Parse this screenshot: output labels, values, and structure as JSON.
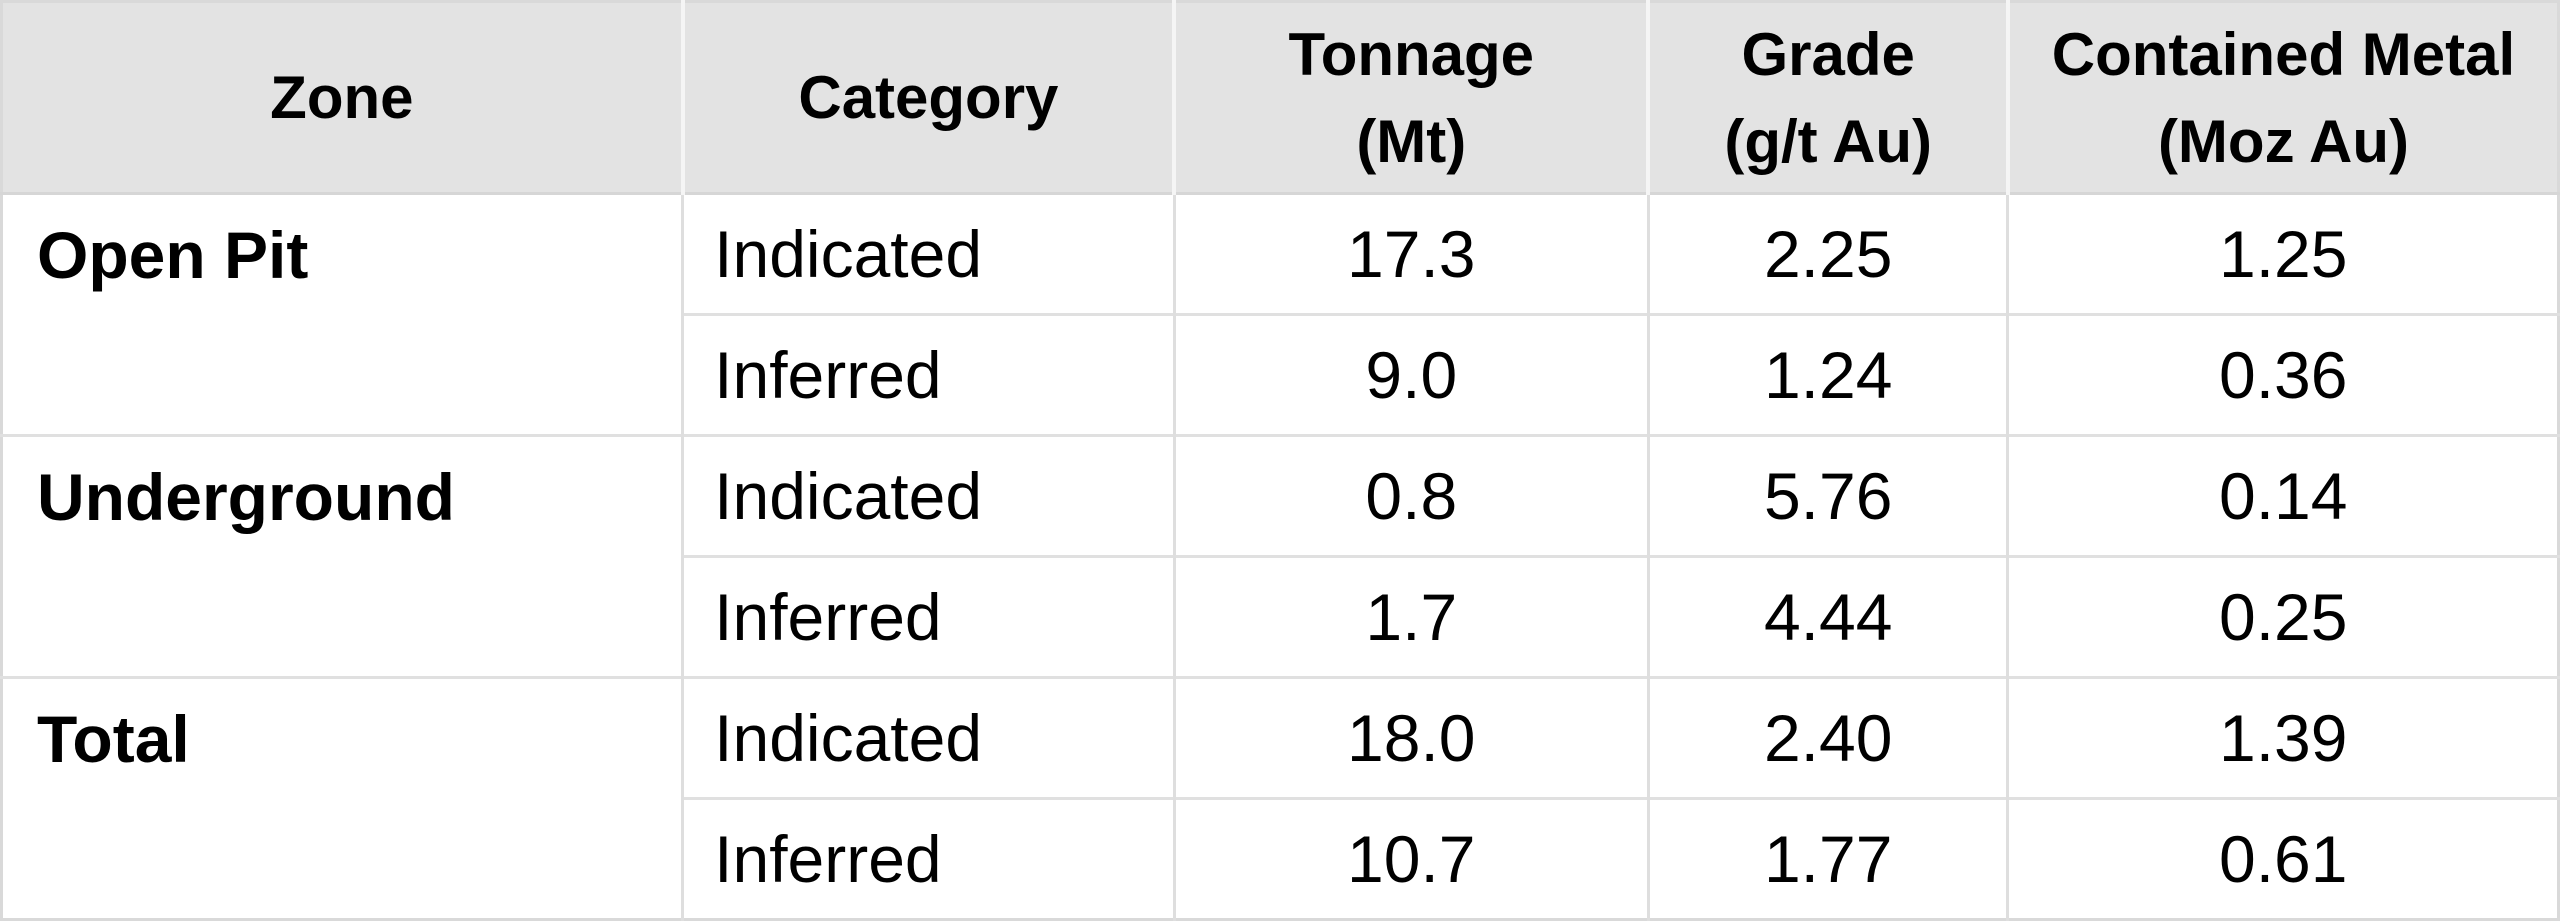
{
  "colors": {
    "header_bg": "#e3e3e3",
    "grid_line": "#dedede",
    "outer_border": "#d9d9d9",
    "text": "#000000"
  },
  "header": {
    "zone": "Zone",
    "category": "Category",
    "tonnage_line1": "Tonnage",
    "tonnage_line2": "(Mt)",
    "grade_line1": "Grade",
    "grade_line2": "(g/t Au)",
    "metal_line1": "Contained Metal",
    "metal_line2": "(Moz Au)"
  },
  "groups": [
    {
      "zone": "Open Pit",
      "rows": [
        {
          "category": "Indicated",
          "tonnage": "17.3",
          "grade": "2.25",
          "metal": "1.25"
        },
        {
          "category": "Inferred",
          "tonnage": "9.0",
          "grade": "1.24",
          "metal": "0.36"
        }
      ]
    },
    {
      "zone": "Underground",
      "rows": [
        {
          "category": "Indicated",
          "tonnage": "0.8",
          "grade": "5.76",
          "metal": "0.14"
        },
        {
          "category": "Inferred",
          "tonnage": "1.7",
          "grade": "4.44",
          "metal": "0.25"
        }
      ]
    },
    {
      "zone": "Total",
      "rows": [
        {
          "category": "Indicated",
          "tonnage": "18.0",
          "grade": "2.40",
          "metal": "1.39"
        },
        {
          "category": "Inferred",
          "tonnage": "10.7",
          "grade": "1.77",
          "metal": "0.61"
        }
      ]
    }
  ],
  "chart_data": {
    "type": "table",
    "title": "",
    "columns": [
      "Zone",
      "Category",
      "Tonnage (Mt)",
      "Grade (g/t Au)",
      "Contained Metal (Moz Au)"
    ],
    "rows": [
      [
        "Open Pit",
        "Indicated",
        "17.3",
        "2.25",
        "1.25"
      ],
      [
        "Open Pit",
        "Inferred",
        "9.0",
        "1.24",
        "0.36"
      ],
      [
        "Underground",
        "Indicated",
        "0.8",
        "5.76",
        "0.14"
      ],
      [
        "Underground",
        "Inferred",
        "1.7",
        "4.44",
        "0.25"
      ],
      [
        "Total",
        "Indicated",
        "18.0",
        "2.40",
        "1.39"
      ],
      [
        "Total",
        "Inferred",
        "10.7",
        "1.77",
        "0.61"
      ]
    ],
    "layout_hints": {
      "zone_cells_rowspan": 2,
      "header_background": "#e3e3e3",
      "numeric_alignment": "center"
    }
  }
}
